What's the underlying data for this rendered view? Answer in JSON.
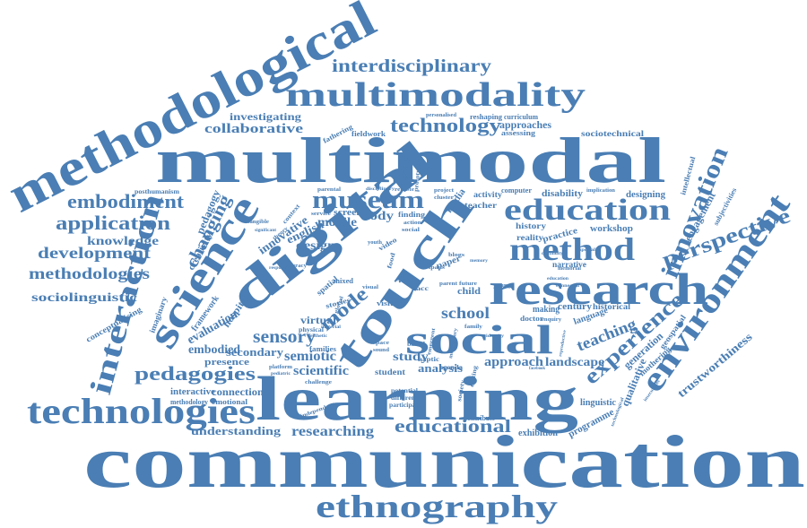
{
  "color": "#4a7eb4",
  "words": {
    "communication": "communication",
    "multimodal": "multimodal",
    "learning": "learning",
    "digital": "digital",
    "methodological": "methodological",
    "touch": "touch",
    "research": "research",
    "social": "social",
    "science": "science",
    "multimodality": "multimodality",
    "technologies": "technologies",
    "ethnography": "ethnography",
    "environment": "environment",
    "interaction": "interaction",
    "education": "education",
    "method": "method",
    "museum": "museum",
    "innovation": "innovation",
    "perspective": "perspective",
    "experience": "experience",
    "technology": "technology",
    "interdisciplinary": "interdisciplinary",
    "embodiment": "embodiment",
    "application": "application",
    "development": "development",
    "knowledge": "knowledge",
    "methodologies": "methodologies",
    "sociolinguistic": "sociolinguistic",
    "changing": "changing",
    "pedagogies": "pedagogies",
    "sensory": "sensory",
    "semiotic": "semiotic",
    "scientific": "scientific",
    "school": "school",
    "educational": "educational",
    "researching": "researching",
    "understanding": "understanding",
    "teaching": "teaching",
    "mode": "mode",
    "collaborative": "collaborative",
    "investigating": "investigating",
    "approach": "approach",
    "study": "study",
    "analysis": "analysis",
    "landscape": "landscape",
    "evaluation": "evaluation",
    "embodied": "embodied",
    "secondary": "secondary",
    "presence": "presence",
    "virtual": "virtual",
    "design": "design",
    "mobile": "mobile",
    "body": "body",
    "screen": "screen",
    "english": "english",
    "innovative": "innovative",
    "pedagogy": "pedagogy",
    "creativity": "creativity",
    "framework": "framework",
    "hospital": "hospital",
    "interactive": "interactive",
    "connection": "connection",
    "qualitative": "qualitative",
    "trustworthiness": "trustworthiness",
    "generation": "generation",
    "programme": "programme",
    "linguistic": "linguistic",
    "exhibition": "exhibition",
    "contribute": "contribute",
    "engagement": "engagement",
    "workshop": "workshop",
    "narrative": "narrative",
    "century": "century",
    "historical": "historical",
    "language": "language",
    "history": "history",
    "practice": "practice",
    "reality": "reality",
    "disability": "disability",
    "designing": "designing",
    "activity": "activity",
    "computer": "computer",
    "teacher": "teacher",
    "media": "media",
    "approaches": "approaches",
    "reshaping": "reshaping",
    "curriculum": "curriculum",
    "assessing": "assessing",
    "sociotechnical": "sociotechnical",
    "fieldwork": "fieldwork",
    "fathering": "fathering",
    "posthumanism": "posthumanism",
    "conceptualising": "conceptualising",
    "imaginary": "imaginary",
    "emotional": "emotional",
    "methodology": "methodology",
    "making": "making",
    "child": "child",
    "doctor": "doctor",
    "visitor": "visitor",
    "student": "student",
    "families": "families",
    "mixed": "mixed",
    "stories": "stories",
    "video": "video",
    "finding": "finding",
    "paper": "paper",
    "data": "data",
    "intellectual": "intellectual",
    "subjectivities": "subjectivities",
    "mothering": "mothering",
    "geospatial": "geospatial",
    "flexible": "flexible",
    "prototyping": "prototyping",
    "personalised": "personalised",
    "implication": "implication",
    "haptic": "haptic",
    "agenda": "agenda",
    "potential": "potential",
    "different": "different",
    "participant": "participant",
    "challenge": "challenge",
    "platform": "platform",
    "physical": "physical",
    "tangible": "tangible",
    "parental": "parental",
    "remote": "remote",
    "cluster": "cluster",
    "project": "project",
    "disciplinary": "disciplinary",
    "multisensory": "multisensory",
    "emergent": "emergent",
    "based": "based",
    "young": "young",
    "future": "future",
    "family": "family",
    "parent": "parent",
    "ipads": "ipads",
    "blogs": "blogs",
    "editing": "editing",
    "society": "society",
    "art": "art",
    "acc": "acc",
    "food": "food",
    "space": "space",
    "sound": "sound",
    "action": "action",
    "social_small": "social",
    "enquiry": "enquiry",
    "youth": "youth",
    "memorial": "memorial",
    "connected": "connected",
    "spatial": "spatial",
    "context": "context",
    "service": "service",
    "literacy": "literacy",
    "theory": "theory",
    "aesthetic": "aesthetic",
    "material": "material",
    "pediatric": "pediatric",
    "independent": "independent",
    "responsive": "responsive",
    "reproductive": "reproductive",
    "facebook": "facebook",
    "technological": "technological",
    "specialist": "specialist",
    "continuity": "continuity",
    "significant": "significant",
    "education_small": "education",
    "insecurities": "insecurities",
    "visual": "visual",
    "global": "global",
    "memory": "memory",
    "identity": "identity"
  }
}
